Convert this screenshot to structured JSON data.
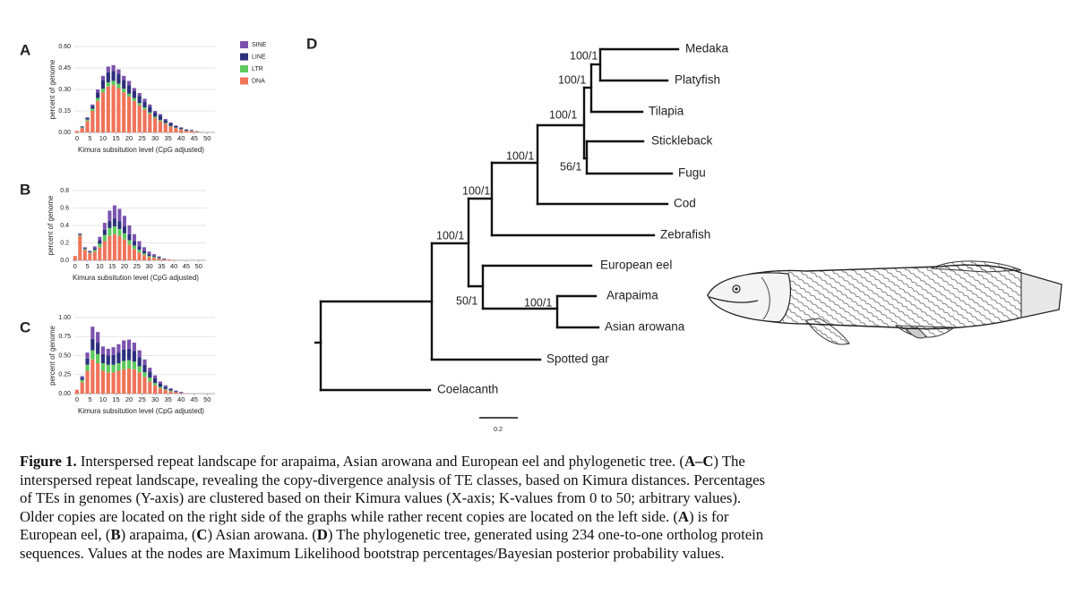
{
  "panels": [
    "A",
    "B",
    "C",
    "D"
  ],
  "chart_data": [
    {
      "type": "bar",
      "stacked": true,
      "ylabel": "percent of genome",
      "xlabel": "Kimura subsitution level (CpG adjusted)",
      "x": [
        0,
        2,
        4,
        6,
        8,
        10,
        12,
        14,
        16,
        18,
        20,
        22,
        24,
        26,
        28,
        30,
        32,
        34,
        36,
        38,
        40,
        42,
        44,
        46,
        48,
        50
      ],
      "xlim": [
        -1,
        53
      ],
      "xticks": [
        0,
        5,
        10,
        15,
        20,
        25,
        30,
        35,
        40,
        45,
        50
      ],
      "ylim": [
        0,
        0.6
      ],
      "yticks": [
        {
          "value": 0,
          "label": "0.00"
        },
        0.15,
        {
          "value": 0.3,
          "label": "0.30"
        },
        0.45,
        {
          "value": 0.6,
          "label": "0.60"
        }
      ],
      "grid": true,
      "legend": "right",
      "series": [
        {
          "name": "DNA",
          "color": "#f0735a",
          "values": [
            0.01,
            0.03,
            0.08,
            0.15,
            0.22,
            0.28,
            0.32,
            0.33,
            0.31,
            0.28,
            0.25,
            0.22,
            0.19,
            0.16,
            0.13,
            0.1,
            0.08,
            0.06,
            0.04,
            0.03,
            0.02,
            0.01,
            0.01,
            0.005,
            0,
            0
          ]
        },
        {
          "name": "LTR",
          "color": "#5cc95c",
          "values": [
            0,
            0.005,
            0.01,
            0.015,
            0.02,
            0.025,
            0.03,
            0.03,
            0.03,
            0.025,
            0.02,
            0.02,
            0.015,
            0.015,
            0.01,
            0.01,
            0.008,
            0.006,
            0.005,
            0.004,
            0.003,
            0.002,
            0.001,
            0,
            0,
            0
          ]
        },
        {
          "name": "LINE",
          "color": "#2c2f7c",
          "values": [
            0,
            0.005,
            0.01,
            0.02,
            0.04,
            0.06,
            0.07,
            0.07,
            0.07,
            0.06,
            0.06,
            0.05,
            0.05,
            0.04,
            0.04,
            0.03,
            0.03,
            0.02,
            0.02,
            0.01,
            0.01,
            0.008,
            0.005,
            0.003,
            0.001,
            0
          ]
        },
        {
          "name": "SINE",
          "color": "#7b52ae",
          "values": [
            0,
            0.003,
            0.005,
            0.01,
            0.02,
            0.03,
            0.04,
            0.04,
            0.03,
            0.03,
            0.03,
            0.02,
            0.02,
            0.02,
            0.015,
            0.01,
            0.01,
            0.008,
            0.005,
            0.004,
            0.003,
            0.002,
            0.001,
            0,
            0,
            0
          ]
        }
      ]
    },
    {
      "type": "bar",
      "stacked": true,
      "ylabel": "percent of genome",
      "xlabel": "Kimura subsitution level (CpG adjusted)",
      "x": [
        0,
        2,
        4,
        6,
        8,
        10,
        12,
        14,
        16,
        18,
        20,
        22,
        24,
        26,
        28,
        30,
        32,
        34,
        36,
        38,
        40,
        42,
        44,
        46,
        48,
        50
      ],
      "xlim": [
        -1,
        53
      ],
      "xticks": [
        0,
        5,
        10,
        15,
        20,
        25,
        30,
        35,
        40,
        45,
        50
      ],
      "ylim": [
        0,
        0.8
      ],
      "yticks": [
        {
          "value": 0,
          "label": "0.0"
        },
        0.2,
        0.4,
        0.6,
        0.8
      ],
      "grid": true,
      "series": [
        {
          "name": "DNA",
          "color": "#f0735a",
          "values": [
            0.05,
            0.28,
            0.12,
            0.08,
            0.1,
            0.15,
            0.22,
            0.28,
            0.3,
            0.28,
            0.24,
            0.18,
            0.13,
            0.09,
            0.06,
            0.04,
            0.03,
            0.02,
            0.01,
            0.01,
            0.005,
            0,
            0,
            0,
            0,
            0
          ]
        },
        {
          "name": "LTR",
          "color": "#5cc95c",
          "values": [
            0,
            0.01,
            0.01,
            0.01,
            0.02,
            0.04,
            0.07,
            0.09,
            0.09,
            0.08,
            0.07,
            0.05,
            0.04,
            0.03,
            0.02,
            0.01,
            0.01,
            0.005,
            0,
            0,
            0,
            0,
            0,
            0,
            0,
            0
          ]
        },
        {
          "name": "LINE",
          "color": "#2c2f7c",
          "values": [
            0,
            0.01,
            0.01,
            0.01,
            0.02,
            0.04,
            0.06,
            0.08,
            0.09,
            0.09,
            0.08,
            0.07,
            0.05,
            0.04,
            0.03,
            0.02,
            0.01,
            0.01,
            0.005,
            0,
            0,
            0,
            0,
            0,
            0,
            0
          ]
        },
        {
          "name": "SINE",
          "color": "#7b52ae",
          "values": [
            0,
            0.01,
            0.01,
            0.01,
            0.02,
            0.04,
            0.08,
            0.12,
            0.15,
            0.14,
            0.12,
            0.1,
            0.08,
            0.06,
            0.04,
            0.03,
            0.02,
            0.01,
            0.005,
            0,
            0,
            0,
            0,
            0,
            0,
            0
          ]
        }
      ]
    },
    {
      "type": "bar",
      "stacked": true,
      "ylabel": "percent of genome",
      "xlabel": "Kimura subsitution level (CpG adjusted)",
      "x": [
        0,
        2,
        4,
        6,
        8,
        10,
        12,
        14,
        16,
        18,
        20,
        22,
        24,
        26,
        28,
        30,
        32,
        34,
        36,
        38,
        40,
        42,
        44,
        46,
        48,
        50
      ],
      "xlim": [
        -1,
        53
      ],
      "xticks": [
        0,
        5,
        10,
        15,
        20,
        25,
        30,
        35,
        40,
        45,
        50
      ],
      "ylim": [
        0,
        1
      ],
      "yticks": [
        {
          "value": 0,
          "label": "0.00"
        },
        0.25,
        {
          "value": 0.5,
          "label": "0.50"
        },
        0.75,
        {
          "value": 1,
          "label": "1.00"
        }
      ],
      "grid": true,
      "series": [
        {
          "name": "DNA",
          "color": "#f0735a",
          "values": [
            0.05,
            0.15,
            0.3,
            0.45,
            0.4,
            0.3,
            0.28,
            0.28,
            0.3,
            0.32,
            0.33,
            0.32,
            0.28,
            0.22,
            0.16,
            0.11,
            0.07,
            0.05,
            0.03,
            0.02,
            0.01,
            0.005,
            0,
            0,
            0,
            0
          ]
        },
        {
          "name": "LTR",
          "color": "#5cc95c",
          "values": [
            0,
            0.03,
            0.08,
            0.12,
            0.12,
            0.1,
            0.1,
            0.1,
            0.1,
            0.11,
            0.11,
            0.1,
            0.08,
            0.06,
            0.05,
            0.03,
            0.02,
            0.01,
            0.01,
            0,
            0,
            0,
            0,
            0,
            0,
            0
          ]
        },
        {
          "name": "LINE",
          "color": "#2c2f7c",
          "values": [
            0,
            0.03,
            0.08,
            0.15,
            0.15,
            0.12,
            0.12,
            0.13,
            0.14,
            0.15,
            0.15,
            0.14,
            0.12,
            0.1,
            0.08,
            0.06,
            0.04,
            0.03,
            0.02,
            0.01,
            0.01,
            0,
            0,
            0,
            0,
            0
          ]
        },
        {
          "name": "SINE",
          "color": "#7b52ae",
          "values": [
            0,
            0.02,
            0.08,
            0.16,
            0.14,
            0.1,
            0.09,
            0.1,
            0.11,
            0.12,
            0.12,
            0.11,
            0.09,
            0.07,
            0.05,
            0.04,
            0.03,
            0.02,
            0.01,
            0.01,
            0,
            0,
            0,
            0,
            0,
            0
          ]
        }
      ]
    }
  ],
  "tree": {
    "taxa": [
      "Medaka",
      "Platyfish",
      "Tilapia",
      "Stickleback",
      "Fugu",
      "Cod",
      "Zebrafish",
      "European eel",
      "Arapaima",
      "Asian arowana",
      "Spotted gar",
      "Coelacanth"
    ],
    "supports": [
      "100/1",
      "100/1",
      "100/1",
      "56/1",
      "100/1",
      "100/1",
      "100/1",
      "50/1",
      "100/1"
    ],
    "scale": "0.2"
  },
  "caption": [
    {
      "text": "Figure 1.",
      "bold": true
    },
    {
      "text": " Interspersed repeat landscape for arapaima, Asian arowana and European eel and phylogenetic tree. (",
      "bold": false
    },
    {
      "text": "A–C",
      "bold": true
    },
    {
      "text": ") The interspersed repeat landscape, revealing the copy-divergence analysis of TE classes, based on Kimura distances. Percentages of TEs in genomes (Y-axis) are clustered based on their Kimura values (X-axis; K-values from 0 to 50; arbitrary values). Older copies are located on the right side of the graphs while rather recent copies are located on the left side. (",
      "bold": false
    },
    {
      "text": "A",
      "bold": true
    },
    {
      "text": ") is for European eel, (",
      "bold": false
    },
    {
      "text": "B",
      "bold": true
    },
    {
      "text": ") arapaima, (",
      "bold": false
    },
    {
      "text": "C",
      "bold": true
    },
    {
      "text": ") Asian arowana. (",
      "bold": false
    },
    {
      "text": "D",
      "bold": true
    },
    {
      "text": ") The phylogenetic tree, generated using 234 one-to-one ortholog protein sequences. Values at the nodes are Maximum Likelihood bootstrap percentages/Bayesian posterior probability values.",
      "bold": false
    }
  ]
}
